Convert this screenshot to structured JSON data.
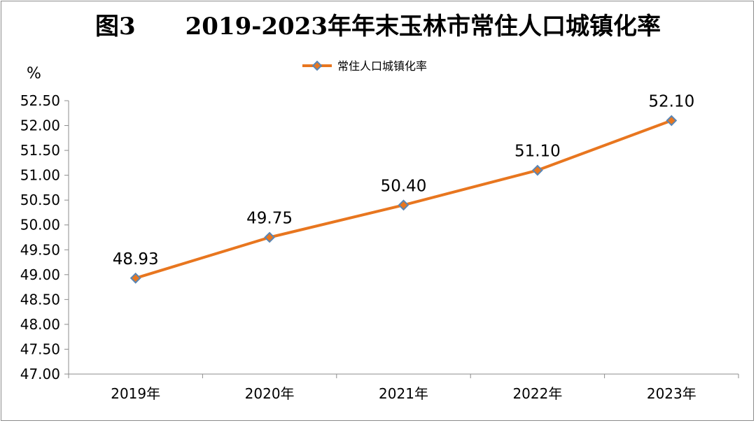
{
  "chart_data": {
    "type": "line",
    "title": "图3      2019-2023年年末玉林市常住人口城镇化率",
    "ylabel": "%",
    "categories": [
      "2019年",
      "2020年",
      "2021年",
      "2022年",
      "2023年"
    ],
    "series": [
      {
        "name": "常住人口城镇化率",
        "values": [
          48.93,
          49.75,
          50.4,
          51.1,
          52.1
        ],
        "color": "#e8761f",
        "marker_color": "#5a86b4"
      }
    ],
    "data_labels": [
      "48.93",
      "49.75",
      "50.40",
      "51.10",
      "52.10"
    ],
    "ylim": [
      47.0,
      52.5
    ],
    "yticks": [
      "47.00",
      "47.50",
      "48.00",
      "48.50",
      "49.00",
      "49.50",
      "50.00",
      "50.50",
      "51.00",
      "51.50",
      "52.00",
      "52.50"
    ],
    "grid": false,
    "legend": "top-center"
  }
}
